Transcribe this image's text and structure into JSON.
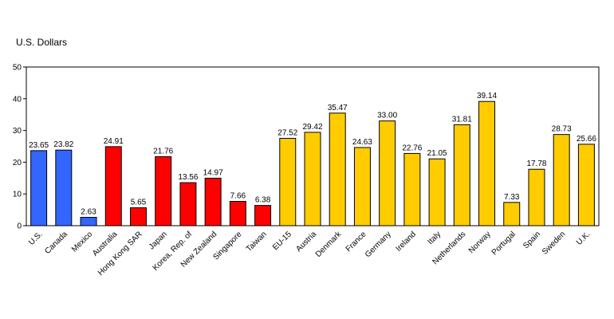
{
  "chart_data": {
    "type": "bar",
    "ylabel": "U.S. Dollars",
    "ylim": [
      0,
      50
    ],
    "yticks": [
      0,
      10,
      20,
      30,
      40,
      50
    ],
    "grid": false,
    "categories": [
      "U.S.",
      "Canada",
      "Mexico",
      "Australia",
      "Hong Kong SAR",
      "Japan",
      "Korea, Rep. of",
      "New Zealand",
      "Singapore",
      "Taiwan",
      "EU-15",
      "Austria",
      "Denmark",
      "France",
      "Germany",
      "Ireland",
      "Italy",
      "Netherlands",
      "Norway",
      "Portugal",
      "Spain",
      "Sweden",
      "U.K."
    ],
    "values": [
      23.65,
      23.82,
      2.63,
      24.91,
      5.65,
      21.76,
      13.56,
      14.97,
      7.66,
      6.38,
      27.52,
      29.42,
      35.47,
      24.63,
      33.0,
      22.76,
      21.05,
      31.81,
      39.14,
      7.33,
      17.78,
      28.73,
      25.66
    ],
    "value_labels": [
      "23.65",
      "23.82",
      "2.63",
      "24.91",
      "5.65",
      "21.76",
      "13.56",
      "14.97",
      "7.66",
      "6.38",
      "27.52",
      "29.42",
      "35.47",
      "24.63",
      "33.00",
      "22.76",
      "21.05",
      "31.81",
      "39.14",
      "7.33",
      "17.78",
      "28.73",
      "25.66"
    ],
    "groups": [
      "americas",
      "americas",
      "americas",
      "asia_pacific",
      "asia_pacific",
      "asia_pacific",
      "asia_pacific",
      "asia_pacific",
      "asia_pacific",
      "asia_pacific",
      "europe",
      "europe",
      "europe",
      "europe",
      "europe",
      "europe",
      "europe",
      "europe",
      "europe",
      "europe",
      "europe",
      "europe",
      "europe"
    ],
    "colors": {
      "americas": "#3366FF",
      "asia_pacific": "#FF0000",
      "europe": "#FFCC00"
    }
  }
}
